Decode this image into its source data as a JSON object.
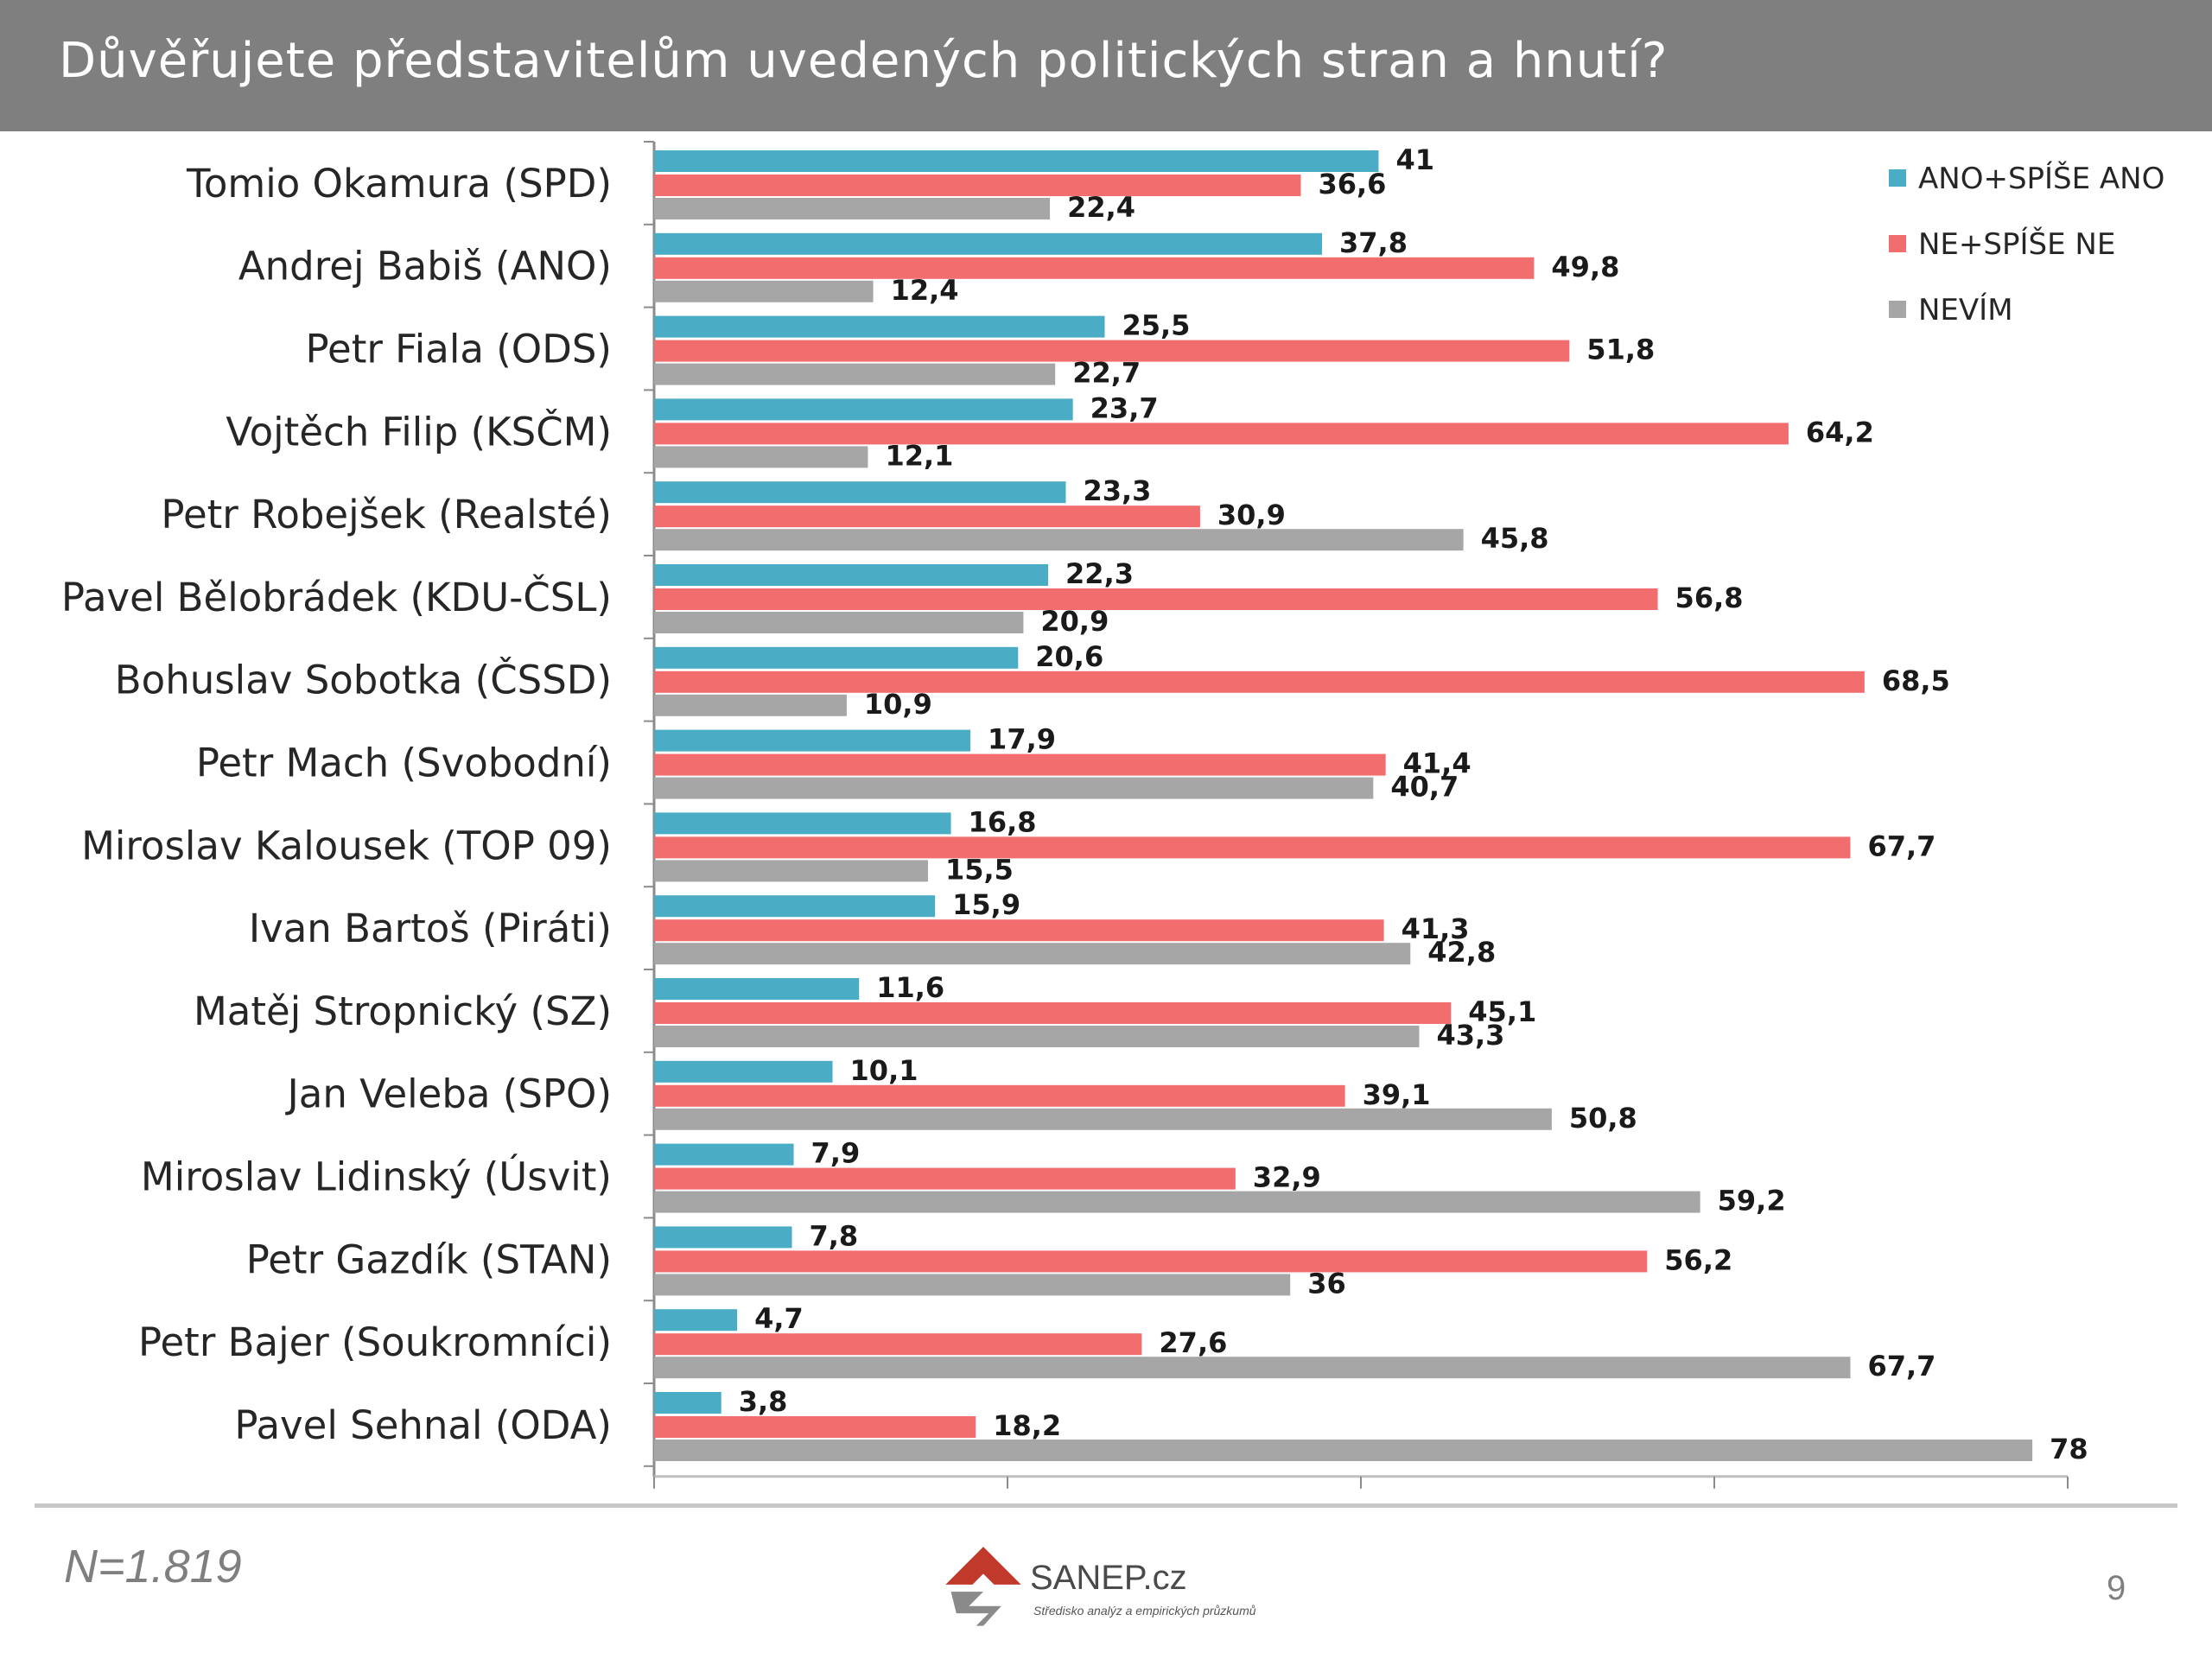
{
  "slide": {
    "title": "Důvěřujete představitelům uvedených politických stran a hnutí?",
    "footnote": "N=1.819",
    "page_number": "9",
    "logo": {
      "name": "SANEP.cz",
      "tagline": "Středisko analýz a empirických průzkumů"
    }
  },
  "chart_data": {
    "type": "bar",
    "orientation": "horizontal",
    "title": "Důvěřujete představitelům uvedených politických stran a hnutí?",
    "categories": [
      "Tomio Okamura (SPD)",
      "Andrej Babiš (ANO)",
      "Petr Fiala  (ODS)",
      "Vojtěch Filip (KSČM)",
      "Petr Robejšek (Realsté)",
      "Pavel Bělobrádek (KDU-ČSL)",
      "Bohuslav Sobotka (ČSSD)",
      "Petr Mach (Svobodní)",
      "Miroslav Kalousek (TOP 09)",
      "Ivan Bartoš (Piráti)",
      "Matěj Stropnický (SZ)",
      "Jan Veleba (SPO)",
      "Miroslav Lidinský (Úsvit)",
      "Petr Gazdík (STAN)",
      "Petr Bajer (Soukromníci)",
      "Pavel Sehnal (ODA)"
    ],
    "series": [
      {
        "name": "ANO+SPÍŠE ANO",
        "color": "#4bacc6",
        "values": [
          41,
          37.8,
          25.5,
          23.7,
          23.3,
          22.3,
          20.6,
          17.9,
          16.8,
          15.9,
          11.6,
          10.1,
          7.9,
          7.8,
          4.7,
          3.8
        ],
        "labels": [
          "41",
          "37,8",
          "25,5",
          "23,7",
          "23,3",
          "22,3",
          "20,6",
          "17,9",
          "16,8",
          "15,9",
          "11,6",
          "10,1",
          "7,9",
          "7,8",
          "4,7",
          "3,8"
        ]
      },
      {
        "name": "NE+SPÍŠE NE",
        "color": "#f26d6d",
        "values": [
          36.6,
          49.8,
          51.8,
          64.2,
          30.9,
          56.8,
          68.5,
          41.4,
          67.7,
          41.3,
          45.1,
          39.1,
          32.9,
          56.2,
          27.6,
          18.2
        ],
        "labels": [
          "36,6",
          "49,8",
          "51,8",
          "64,2",
          "30,9",
          "56,8",
          "68,5",
          "41,4",
          "67,7",
          "41,3",
          "45,1",
          "39,1",
          "32,9",
          "56,2",
          "27,6",
          "18,2"
        ]
      },
      {
        "name": "NEVÍM",
        "color": "#a6a6a6",
        "values": [
          22.4,
          12.4,
          22.7,
          12.1,
          45.8,
          20.9,
          10.9,
          40.7,
          15.5,
          42.8,
          43.3,
          50.8,
          59.2,
          36,
          67.7,
          78
        ],
        "labels": [
          "22,4",
          "12,4",
          "22,7",
          "12,1",
          "45,8",
          "20,9",
          "10,9",
          "40,7",
          "15,5",
          "42,8",
          "43,3",
          "50,8",
          "59,2",
          "36",
          "67,7",
          "78"
        ]
      }
    ],
    "xlim": [
      0,
      80
    ],
    "grid": false,
    "legend_position": "top-right"
  }
}
